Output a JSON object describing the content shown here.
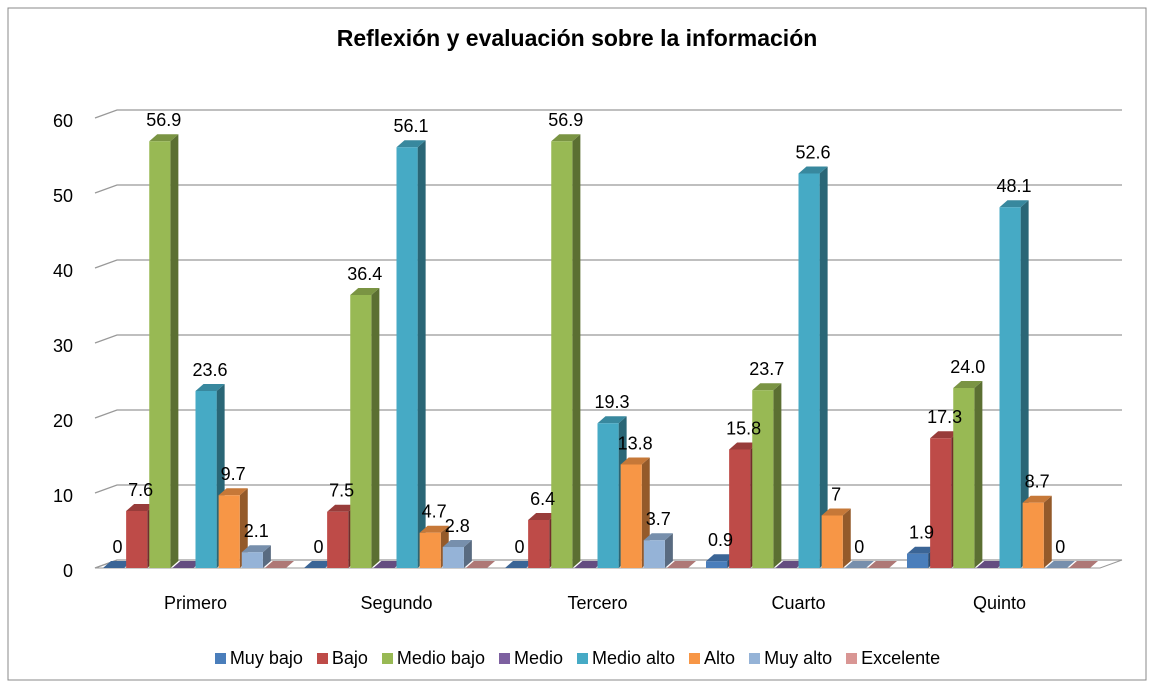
{
  "chart_data": {
    "type": "bar3d",
    "title": "Reflexión y evaluación sobre la información",
    "categories": [
      "Primero",
      "Segundo",
      "Tercero",
      "Cuarto",
      "Quinto"
    ],
    "series": [
      {
        "name": "Muy bajo",
        "color": "#4a7ebb",
        "values": [
          0,
          0,
          0,
          0.9,
          1.9
        ],
        "value_labels": [
          "0",
          "0",
          "0",
          "0.9",
          "1.9"
        ]
      },
      {
        "name": "Bajo",
        "color": "#be4b48",
        "values": [
          7.6,
          7.5,
          6.4,
          15.8,
          17.3
        ],
        "value_labels": [
          "7.6",
          "7.5",
          "6.4",
          "15.8",
          "17.3"
        ]
      },
      {
        "name": "Medio bajo",
        "color": "#98b954",
        "values": [
          56.9,
          36.4,
          56.9,
          23.7,
          24.0
        ],
        "value_labels": [
          "56.9",
          "36.4",
          "56.9",
          "23.7",
          "24.0"
        ]
      },
      {
        "name": "Medio",
        "color": "#7d60a0",
        "values": [
          0,
          0,
          0,
          0,
          0
        ]
      },
      {
        "name": "Medio alto",
        "color": "#46aac5",
        "values": [
          23.6,
          56.1,
          19.3,
          52.6,
          48.1
        ],
        "value_labels": [
          "23.6",
          "56.1",
          "19.3",
          "52.6",
          "48.1"
        ]
      },
      {
        "name": "Alto",
        "color": "#f79646",
        "values": [
          9.7,
          4.7,
          13.8,
          7,
          8.7
        ],
        "value_labels": [
          "9.7",
          "4.7",
          "13.8",
          "7",
          "8.7"
        ]
      },
      {
        "name": "Muy alto",
        "color": "#95b3d7",
        "values": [
          2.1,
          2.8,
          3.7,
          0,
          0
        ],
        "value_labels": [
          "2.1",
          "2.8",
          "3.7",
          "0",
          "0"
        ]
      },
      {
        "name": "Excelente",
        "color": "#d99694",
        "values": [
          0,
          0,
          0,
          0,
          0
        ]
      }
    ],
    "ylim": [
      0,
      60
    ],
    "yticks": [
      0,
      10,
      20,
      30,
      40,
      50,
      60
    ],
    "grid": true,
    "legend": "bottom"
  }
}
